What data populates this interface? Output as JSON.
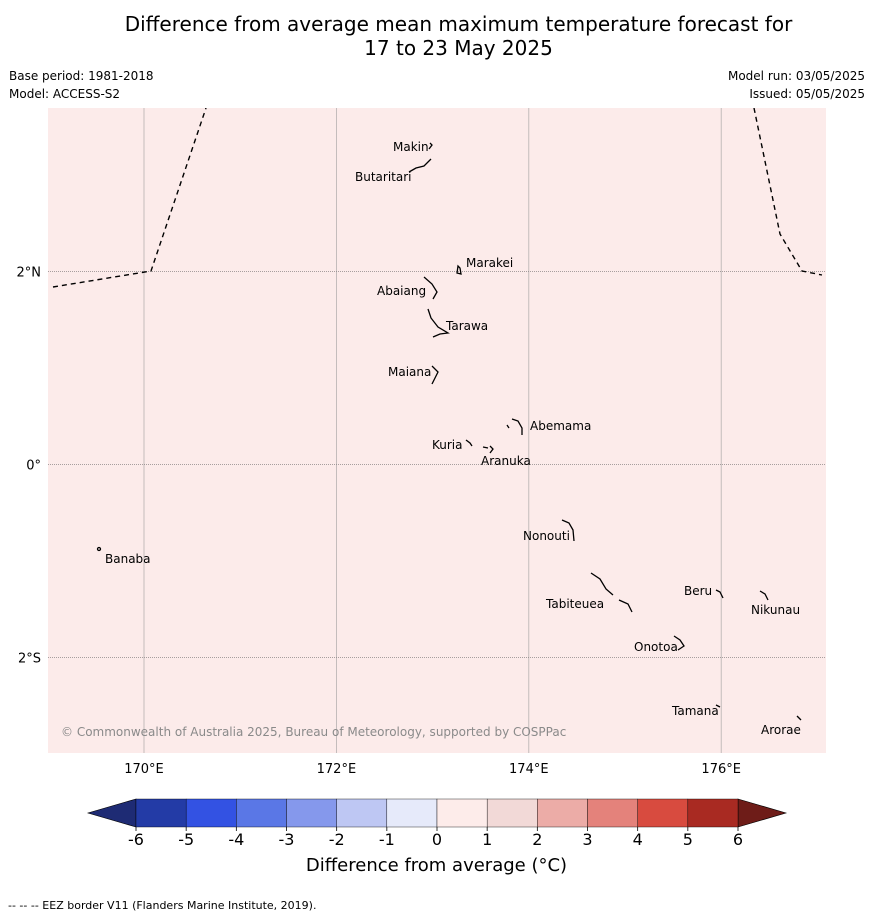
{
  "title": {
    "line1": "Difference from average mean maximum temperature forecast for",
    "line2": "17 to 23 May 2025"
  },
  "meta": {
    "base_period": "Base period: 1981-2018",
    "model": "Model: ACCESS-S2",
    "model_run": "Model run: 03/05/2025",
    "issued": "Issued: 05/05/2025"
  },
  "map": {
    "background_color": "#fcebea",
    "lon_ticks": [
      {
        "value": 170,
        "label": "170°E"
      },
      {
        "value": 172,
        "label": "172°E"
      },
      {
        "value": 174,
        "label": "174°E"
      },
      {
        "value": 176,
        "label": "176°E"
      }
    ],
    "lat_ticks": [
      {
        "value": 2,
        "label": "2°N"
      },
      {
        "value": 0,
        "label": "0°"
      },
      {
        "value": -2,
        "label": "2°S"
      }
    ],
    "islands": [
      {
        "name": "Makin",
        "lon": 172.95,
        "lat": 3.2
      },
      {
        "name": "Butaritari",
        "lon": 172.8,
        "lat": 3.05
      },
      {
        "name": "Marakei",
        "lon": 173.28,
        "lat": 2.0
      },
      {
        "name": "Abaiang",
        "lon": 173.0,
        "lat": 1.8
      },
      {
        "name": "Tarawa",
        "lon": 173.1,
        "lat": 1.4
      },
      {
        "name": "Maiana",
        "lon": 173.0,
        "lat": 0.95
      },
      {
        "name": "Abemama",
        "lon": 173.9,
        "lat": 0.4
      },
      {
        "name": "Kuria",
        "lon": 173.42,
        "lat": 0.22
      },
      {
        "name": "Aranuka",
        "lon": 173.62,
        "lat": 0.17
      },
      {
        "name": "Nonouti",
        "lon": 174.4,
        "lat": -0.65
      },
      {
        "name": "Tabiteuea",
        "lon": 174.85,
        "lat": -1.3
      },
      {
        "name": "Beru",
        "lon": 176.0,
        "lat": -1.33
      },
      {
        "name": "Nikunau",
        "lon": 176.45,
        "lat": -1.35
      },
      {
        "name": "Onotoa",
        "lon": 175.55,
        "lat": -1.87
      },
      {
        "name": "Tamana",
        "lon": 175.98,
        "lat": -2.5
      },
      {
        "name": "Arorae",
        "lon": 176.82,
        "lat": -2.65
      },
      {
        "name": "Banaba",
        "lon": 169.55,
        "lat": -0.87
      }
    ],
    "copyright": "© Commonwealth of Australia 2025, Bureau of Meteorology, supported by COSPPac"
  },
  "colorbar": {
    "ticks": [
      "-6",
      "-5",
      "-4",
      "-3",
      "-2",
      "-1",
      "0",
      "1",
      "2",
      "3",
      "4",
      "5",
      "6"
    ],
    "colors": [
      "#233ba6",
      "#3352e3",
      "#5a77e6",
      "#8598ec",
      "#bec7f3",
      "#e6eafa",
      "#fdecea",
      "#f2d9d7",
      "#ecaca7",
      "#e4827b",
      "#d84b3f",
      "#a92a22"
    ],
    "under_color": "#1e2b74",
    "over_color": "#6e1c18",
    "label": "Difference from average (°C)"
  },
  "footer": "--  --  -- EEZ border V11 (Flanders Marine Institute, 2019)."
}
